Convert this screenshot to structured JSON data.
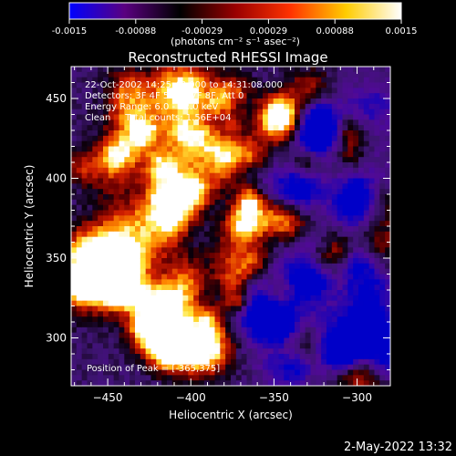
{
  "colorbar": {
    "ticks": [
      "-0.0015",
      "-0.00088",
      "-0.00029",
      "0.00029",
      "0.00088",
      "0.0015"
    ],
    "unit_label": "(photons cm⁻² s⁻¹ asec⁻²)",
    "range": [
      -0.0015,
      0.0015
    ],
    "colors": [
      "#0000ff",
      "#5a0080",
      "#000000",
      "#990000",
      "#ff3300",
      "#ffcc00",
      "#ffffff"
    ]
  },
  "chart_data": {
    "type": "heatmap",
    "title": "Reconstructed RHESSI Image",
    "xlabel": "Heliocentric X (arcsec)",
    "ylabel": "Heliocentric Y (arcsec)",
    "xlim": [
      -472,
      -280
    ],
    "ylim": [
      270,
      470
    ],
    "xticks": [
      -450,
      -400,
      -350,
      -300
    ],
    "yticks": [
      300,
      350,
      400,
      450
    ],
    "xtick_labels": [
      "−450",
      "−400",
      "−350",
      "−300"
    ],
    "ytick_labels": [
      "300",
      "350",
      "400",
      "450"
    ],
    "peak": [
      -365,
      375
    ],
    "annotations": [
      "22-Oct-2002 14:25:48.000 to 14:31:08.000",
      "Detectors: 3F 4F 5F 6F 7F 8F, Att 0",
      "Energy Range: 6.0 - 12.0 keV",
      "Clean     Total counts: 1.56E+04"
    ],
    "peak_label": "Position of Peak = [-365,375]"
  },
  "footer": {
    "timestamp": "2-May-2022 13:32"
  }
}
